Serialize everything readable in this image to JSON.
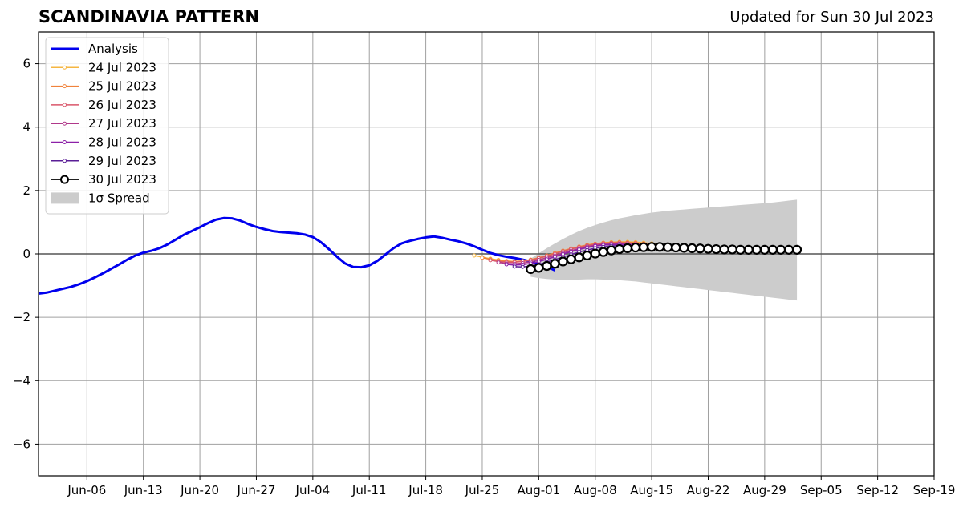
{
  "chart_data": {
    "type": "line",
    "title": "SCANDINAVIA PATTERN",
    "subtitle": "Updated for Sun 30 Jul 2023",
    "xlabel": "",
    "ylabel": "",
    "xlim": [
      "2023-05-31",
      "2023-09-19"
    ],
    "ylim": [
      -7,
      7
    ],
    "grid": true,
    "legend_position": "top-left",
    "x_ticks": [
      "Jun-06",
      "Jun-13",
      "Jun-20",
      "Jun-27",
      "Jul-04",
      "Jul-11",
      "Jul-18",
      "Jul-25",
      "Aug-01",
      "Aug-08",
      "Aug-15",
      "Aug-22",
      "Aug-29",
      "Sep-05",
      "Sep-12",
      "Sep-19"
    ],
    "x_tick_dates": [
      "2023-06-06",
      "2023-06-13",
      "2023-06-20",
      "2023-06-27",
      "2023-07-04",
      "2023-07-11",
      "2023-07-18",
      "2023-07-25",
      "2023-08-01",
      "2023-08-08",
      "2023-08-15",
      "2023-08-22",
      "2023-08-29",
      "2023-09-05",
      "2023-09-12",
      "2023-09-19"
    ],
    "y_ticks": [
      -6,
      -4,
      -2,
      0,
      2,
      4,
      6
    ],
    "y_tick_labels": [
      "−6",
      "−4",
      "−2",
      "0",
      "2",
      "4",
      "6"
    ],
    "analysis": {
      "name": "Analysis",
      "color": "#0000ee",
      "start": "2023-05-31",
      "values": [
        -1.25,
        -1.22,
        -1.16,
        -1.1,
        -1.04,
        -0.96,
        -0.86,
        -0.74,
        -0.61,
        -0.47,
        -0.33,
        -0.18,
        -0.05,
        0.04,
        0.1,
        0.18,
        0.3,
        0.45,
        0.6,
        0.72,
        0.84,
        0.97,
        1.08,
        1.13,
        1.12,
        1.05,
        0.94,
        0.85,
        0.78,
        0.72,
        0.69,
        0.67,
        0.65,
        0.61,
        0.53,
        0.37,
        0.15,
        -0.09,
        -0.3,
        -0.41,
        -0.42,
        -0.36,
        -0.22,
        -0.02,
        0.18,
        0.33,
        0.41,
        0.47,
        0.52,
        0.55,
        0.51,
        0.45,
        0.4,
        0.33,
        0.24,
        0.13,
        0.03,
        -0.04,
        -0.09,
        -0.13,
        -0.18,
        -0.24,
        -0.31,
        -0.4,
        -0.52
      ]
    },
    "forecasts": [
      {
        "name": "24 Jul 2023",
        "color": "#f5b642",
        "start": "2023-07-24",
        "values": [
          -0.05,
          -0.1,
          -0.15,
          -0.19,
          -0.22,
          -0.24,
          -0.23,
          -0.2,
          -0.14,
          -0.07,
          0.01,
          0.09,
          0.16,
          0.22,
          0.28,
          0.32,
          0.35,
          0.37,
          0.38,
          0.38,
          0.37,
          0.35,
          0.33,
          0.3
        ]
      },
      {
        "name": "25 Jul 2023",
        "color": "#f0823c",
        "start": "2023-07-25",
        "values": [
          -0.12,
          -0.17,
          -0.21,
          -0.23,
          -0.24,
          -0.22,
          -0.18,
          -0.12,
          -0.05,
          0.03,
          0.1,
          0.17,
          0.23,
          0.28,
          0.32,
          0.35,
          0.36,
          0.37,
          0.36,
          0.35,
          0.33,
          0.3,
          0.28
        ]
      },
      {
        "name": "26 Jul 2023",
        "color": "#d9566a",
        "start": "2023-07-26",
        "values": [
          -0.2,
          -0.24,
          -0.26,
          -0.26,
          -0.24,
          -0.2,
          -0.14,
          -0.07,
          0.0,
          0.08,
          0.15,
          0.21,
          0.26,
          0.3,
          0.33,
          0.34,
          0.35,
          0.34,
          0.33,
          0.31,
          0.29,
          0.27
        ]
      },
      {
        "name": "27 Jul 2023",
        "color": "#b0388a",
        "start": "2023-07-27",
        "values": [
          -0.27,
          -0.3,
          -0.31,
          -0.29,
          -0.25,
          -0.19,
          -0.12,
          -0.05,
          0.03,
          0.1,
          0.17,
          0.23,
          0.27,
          0.3,
          0.32,
          0.32,
          0.31,
          0.3,
          0.28,
          0.26,
          0.24
        ]
      },
      {
        "name": "28 Jul 2023",
        "color": "#8c20a8",
        "start": "2023-07-28",
        "values": [
          -0.33,
          -0.35,
          -0.34,
          -0.3,
          -0.24,
          -0.17,
          -0.09,
          -0.01,
          0.07,
          0.14,
          0.2,
          0.25,
          0.28,
          0.29,
          0.3,
          0.29,
          0.28,
          0.26,
          0.24,
          0.22
        ]
      },
      {
        "name": "29 Jul 2023",
        "color": "#5a1e96",
        "start": "2023-07-29",
        "values": [
          -0.4,
          -0.41,
          -0.38,
          -0.33,
          -0.26,
          -0.18,
          -0.1,
          -0.02,
          0.06,
          0.12,
          0.18,
          0.22,
          0.25,
          0.26,
          0.26,
          0.25,
          0.24,
          0.22,
          0.2
        ]
      },
      {
        "name": "30 Jul 2023",
        "color": "#000000",
        "start": "2023-07-31",
        "values": [
          -0.48,
          -0.44,
          -0.38,
          -0.31,
          -0.24,
          -0.17,
          -0.11,
          -0.05,
          0.01,
          0.06,
          0.11,
          0.15,
          0.18,
          0.2,
          0.21,
          0.22,
          0.22,
          0.21,
          0.2,
          0.19,
          0.18,
          0.17,
          0.16,
          0.15,
          0.14,
          0.14,
          0.13,
          0.13,
          0.13,
          0.13,
          0.13,
          0.13,
          0.13,
          0.13
        ]
      }
    ],
    "spread": {
      "name": "1σ Spread",
      "color": "#cccccc",
      "start": "2023-07-31",
      "upper": [
        -0.15,
        0.02,
        0.18,
        0.33,
        0.47,
        0.6,
        0.72,
        0.82,
        0.91,
        0.99,
        1.06,
        1.12,
        1.17,
        1.22,
        1.26,
        1.3,
        1.33,
        1.36,
        1.38,
        1.4,
        1.42,
        1.44,
        1.46,
        1.48,
        1.5,
        1.52,
        1.54,
        1.56,
        1.58,
        1.6,
        1.62,
        1.65,
        1.68,
        1.71
      ],
      "lower": [
        -0.72,
        -0.76,
        -0.79,
        -0.81,
        -0.82,
        -0.82,
        -0.81,
        -0.8,
        -0.8,
        -0.81,
        -0.82,
        -0.83,
        -0.85,
        -0.87,
        -0.9,
        -0.93,
        -0.96,
        -0.99,
        -1.02,
        -1.05,
        -1.08,
        -1.11,
        -1.14,
        -1.17,
        -1.2,
        -1.23,
        -1.26,
        -1.29,
        -1.32,
        -1.35,
        -1.38,
        -1.41,
        -1.44,
        -1.47
      ]
    }
  }
}
